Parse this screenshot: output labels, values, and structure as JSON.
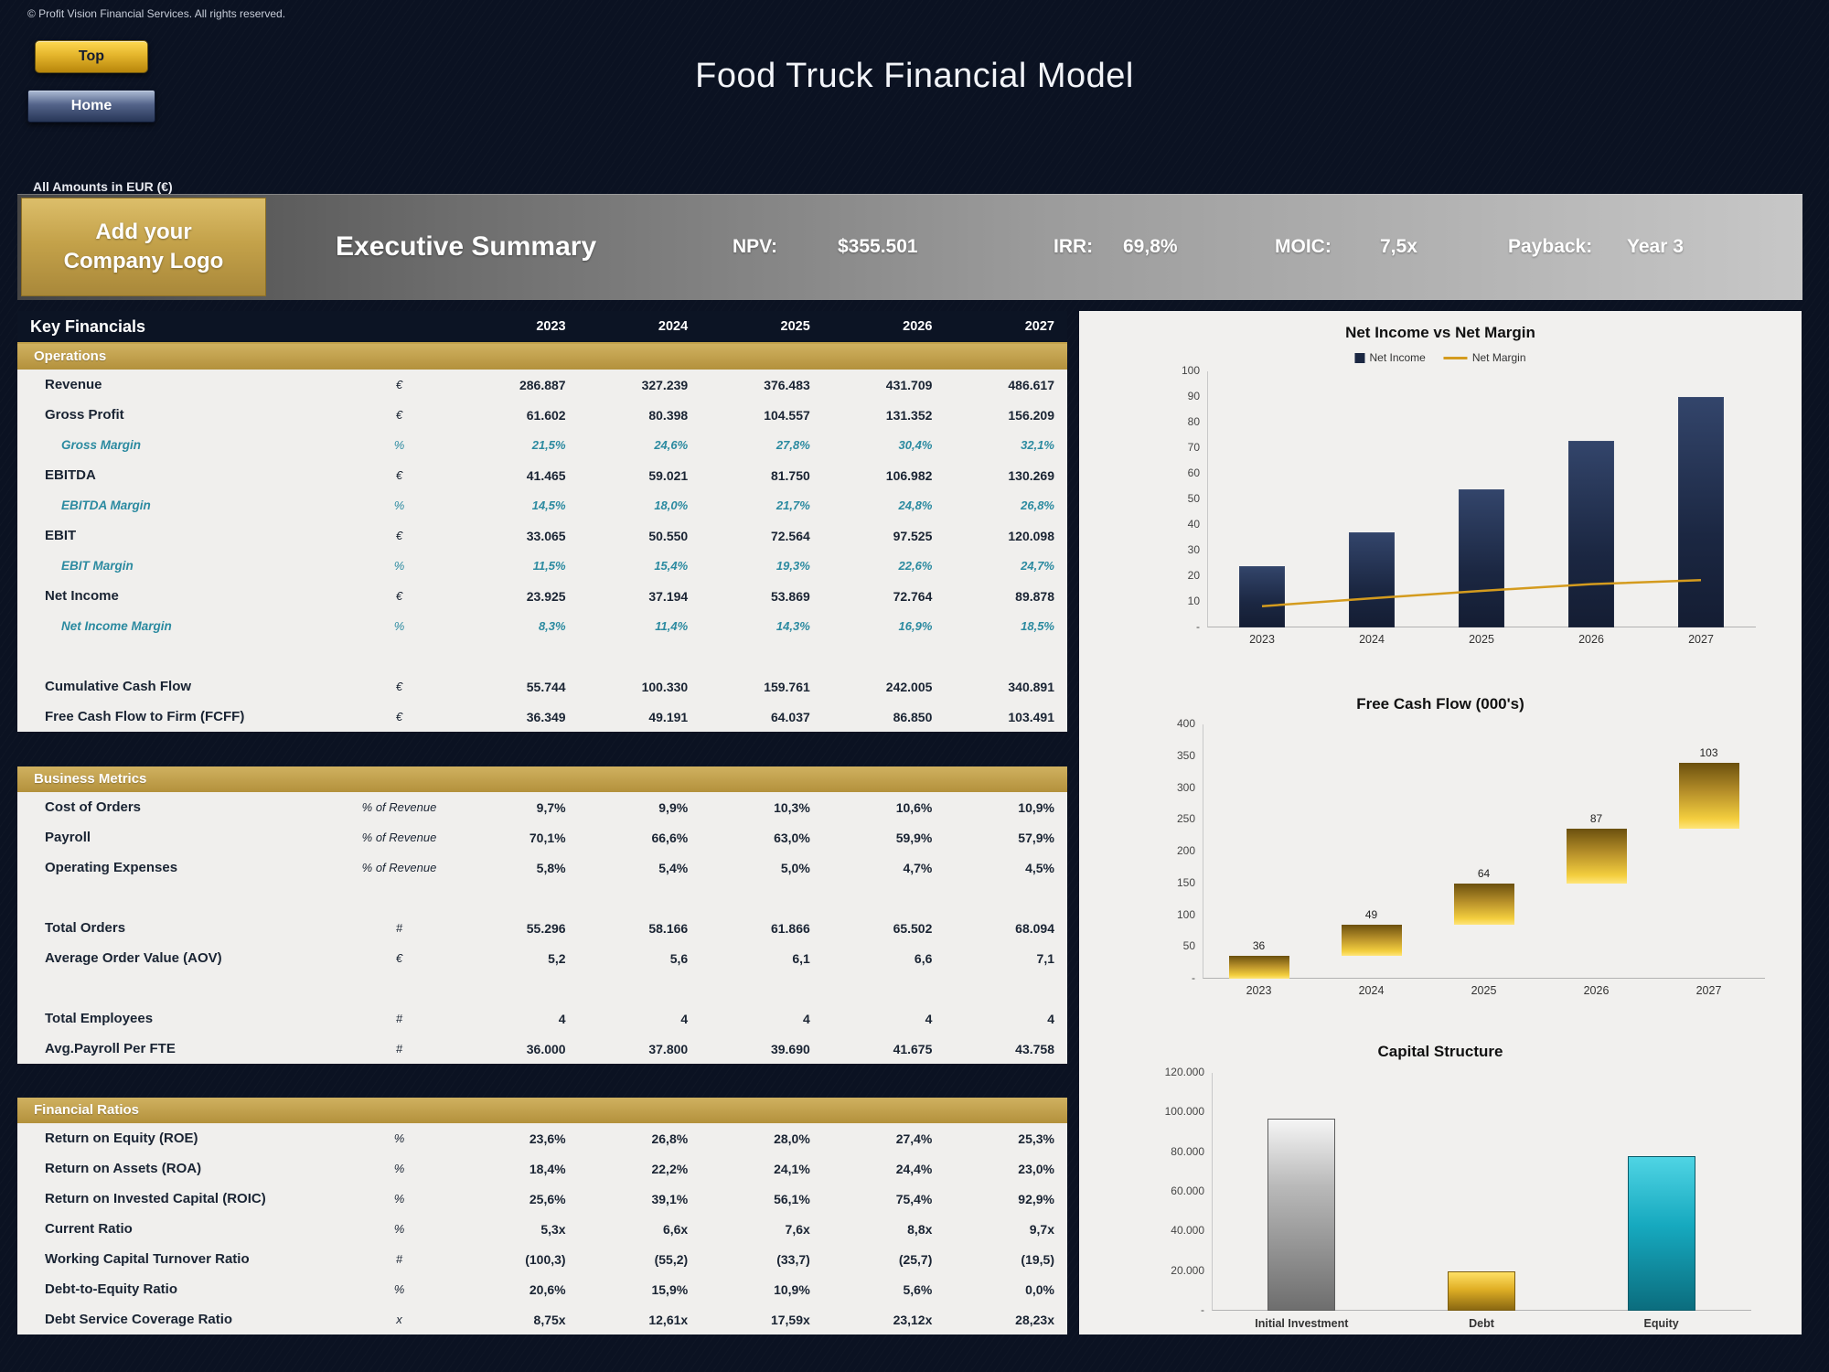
{
  "page": {
    "copyright": "© Profit Vision Financial Services. All rights reserved.",
    "title": "Food Truck Financial Model",
    "amounts_note": "All Amounts in  EUR (€)",
    "nav": {
      "top": "Top",
      "home": "Home"
    }
  },
  "header": {
    "logo_text": "Add your\nCompany Logo",
    "section_title": "Executive Summary",
    "kpis": [
      {
        "label": "NPV:",
        "value": "$355.501"
      },
      {
        "label": "IRR:",
        "value": "69,8%"
      },
      {
        "label": "MOIC:",
        "value": "7,5x"
      },
      {
        "label": "Payback:",
        "value": "Year 3"
      }
    ]
  },
  "table": {
    "title": "Key Financials",
    "years": [
      "2023",
      "2024",
      "2025",
      "2026",
      "2027"
    ],
    "sections": [
      {
        "name": "Operations",
        "rows": [
          {
            "label": "Revenue",
            "unit": "€",
            "style": "bold",
            "values": [
              "286.887",
              "327.239",
              "376.483",
              "431.709",
              "486.617"
            ]
          },
          {
            "label": "Gross Profit",
            "unit": "€",
            "style": "bold",
            "values": [
              "61.602",
              "80.398",
              "104.557",
              "131.352",
              "156.209"
            ]
          },
          {
            "label": "Gross Margin",
            "unit": "%",
            "style": "margin",
            "values": [
              "21,5%",
              "24,6%",
              "27,8%",
              "30,4%",
              "32,1%"
            ]
          },
          {
            "label": "EBITDA",
            "unit": "€",
            "style": "bold",
            "values": [
              "41.465",
              "59.021",
              "81.750",
              "106.982",
              "130.269"
            ]
          },
          {
            "label": "EBITDA Margin",
            "unit": "%",
            "style": "margin",
            "values": [
              "14,5%",
              "18,0%",
              "21,7%",
              "24,8%",
              "26,8%"
            ]
          },
          {
            "label": "EBIT",
            "unit": "€",
            "style": "bold",
            "values": [
              "33.065",
              "50.550",
              "72.564",
              "97.525",
              "120.098"
            ]
          },
          {
            "label": "EBIT Margin",
            "unit": "%",
            "style": "margin",
            "values": [
              "11,5%",
              "15,4%",
              "19,3%",
              "22,6%",
              "24,7%"
            ]
          },
          {
            "label": "Net Income",
            "unit": "€",
            "style": "bold",
            "values": [
              "23.925",
              "37.194",
              "53.869",
              "72.764",
              "89.878"
            ]
          },
          {
            "label": "Net Income Margin",
            "unit": "%",
            "style": "margin",
            "values": [
              "8,3%",
              "11,4%",
              "14,3%",
              "16,9%",
              "18,5%"
            ]
          },
          {
            "style": "spacer"
          },
          {
            "label": "Cumulative Cash Flow",
            "unit": "€",
            "style": "bold",
            "values": [
              "55.744",
              "100.330",
              "159.761",
              "242.005",
              "340.891"
            ]
          },
          {
            "label": "Free Cash Flow to Firm (FCFF)",
            "unit": "€",
            "style": "bold",
            "values": [
              "36.349",
              "49.191",
              "64.037",
              "86.850",
              "103.491"
            ]
          }
        ]
      },
      {
        "name": "Business Metrics",
        "rows": [
          {
            "label": "Cost of Orders",
            "unit": "% of Revenue",
            "style": "bold",
            "values": [
              "9,7%",
              "9,9%",
              "10,3%",
              "10,6%",
              "10,9%"
            ]
          },
          {
            "label": "Payroll",
            "unit": "% of Revenue",
            "style": "bold",
            "values": [
              "70,1%",
              "66,6%",
              "63,0%",
              "59,9%",
              "57,9%"
            ]
          },
          {
            "label": "Operating Expenses",
            "unit": "% of Revenue",
            "style": "bold",
            "values": [
              "5,8%",
              "5,4%",
              "5,0%",
              "4,7%",
              "4,5%"
            ]
          },
          {
            "style": "spacer"
          },
          {
            "label": "Total Orders",
            "unit": "#",
            "style": "bold",
            "values": [
              "55.296",
              "58.166",
              "61.866",
              "65.502",
              "68.094"
            ]
          },
          {
            "label": "Average Order Value (AOV)",
            "unit": "€",
            "style": "bold",
            "values": [
              "5,2",
              "5,6",
              "6,1",
              "6,6",
              "7,1"
            ]
          },
          {
            "style": "spacer"
          },
          {
            "label": "Total Employees",
            "unit": "#",
            "style": "bold",
            "values": [
              "4",
              "4",
              "4",
              "4",
              "4"
            ]
          },
          {
            "label": "Avg.Payroll Per FTE",
            "unit": "#",
            "style": "bold",
            "values": [
              "36.000",
              "37.800",
              "39.690",
              "41.675",
              "43.758"
            ]
          }
        ]
      },
      {
        "name": "Financial Ratios",
        "rows": [
          {
            "label": "Return on Equity (ROE)",
            "unit": "%",
            "style": "bold",
            "values": [
              "23,6%",
              "26,8%",
              "28,0%",
              "27,4%",
              "25,3%"
            ]
          },
          {
            "label": "Return on Assets (ROA)",
            "unit": "%",
            "style": "bold",
            "values": [
              "18,4%",
              "22,2%",
              "24,1%",
              "24,4%",
              "23,0%"
            ]
          },
          {
            "label": "Return on Invested Capital (ROIC)",
            "unit": "%",
            "style": "bold",
            "values": [
              "25,6%",
              "39,1%",
              "56,1%",
              "75,4%",
              "92,9%"
            ]
          },
          {
            "label": "Current Ratio",
            "unit": "%",
            "style": "bold",
            "values": [
              "5,3x",
              "6,6x",
              "7,6x",
              "8,8x",
              "9,7x"
            ]
          },
          {
            "label": "Working Capital Turnover Ratio",
            "unit": "#",
            "style": "bold",
            "values": [
              "(100,3)",
              "(55,2)",
              "(33,7)",
              "(25,7)",
              "(19,5)"
            ]
          },
          {
            "label": "Debt-to-Equity Ratio",
            "unit": "%",
            "style": "bold",
            "values": [
              "20,6%",
              "15,9%",
              "10,9%",
              "5,6%",
              "0,0%"
            ]
          },
          {
            "label": "Debt Service Coverage Ratio",
            "unit": "x",
            "style": "bold",
            "values": [
              "8,75x",
              "12,61x",
              "17,59x",
              "23,12x",
              "28,23x"
            ]
          }
        ]
      }
    ]
  },
  "chart_data": [
    {
      "type": "bar",
      "title": "Net Income vs Net Margin",
      "categories": [
        "2023",
        "2024",
        "2025",
        "2026",
        "2027"
      ],
      "series": [
        {
          "name": "Net Income",
          "type": "bar",
          "values": [
            23.9,
            37.2,
            53.9,
            72.8,
            89.9
          ],
          "color": "#1b2742"
        },
        {
          "name": "Net Margin",
          "type": "line",
          "values": [
            8.3,
            11.4,
            14.3,
            16.9,
            18.5
          ],
          "color": "#d49b1e"
        }
      ],
      "ylim": [
        0,
        100
      ],
      "yticks": [
        "-",
        "10",
        "20",
        "30",
        "40",
        "50",
        "60",
        "70",
        "80",
        "90",
        "100"
      ],
      "legend_position": "top"
    },
    {
      "type": "waterfall",
      "title": "Free Cash Flow (000's)",
      "categories": [
        "2023",
        "2024",
        "2025",
        "2026",
        "2027"
      ],
      "values": [
        36,
        49,
        64,
        87,
        103
      ],
      "labels": [
        "36",
        "49",
        "64",
        "87",
        "103"
      ],
      "ylim": [
        0,
        400
      ],
      "yticks": [
        "-",
        "50",
        "100",
        "150",
        "200",
        "250",
        "300",
        "350",
        "400"
      ]
    },
    {
      "type": "bar",
      "title": "Capital Structure",
      "categories": [
        "Initial Investment",
        "Debt",
        "Equity"
      ],
      "values": [
        97000,
        20000,
        78000
      ],
      "colors": [
        "gray",
        "gold",
        "teal"
      ],
      "ylim": [
        0,
        120000
      ],
      "yticks": [
        "-",
        "20.000",
        "40.000",
        "60.000",
        "80.000",
        "100.000",
        "120.000"
      ]
    }
  ],
  "colors": {
    "navy_bg": "#0b1222",
    "gold_accent": "#c3a24a",
    "teal_text": "#2b8aa0",
    "bar_navy": "#1b2742",
    "line_gold": "#d49b1e",
    "panel_bg": "#f1f0ee"
  }
}
